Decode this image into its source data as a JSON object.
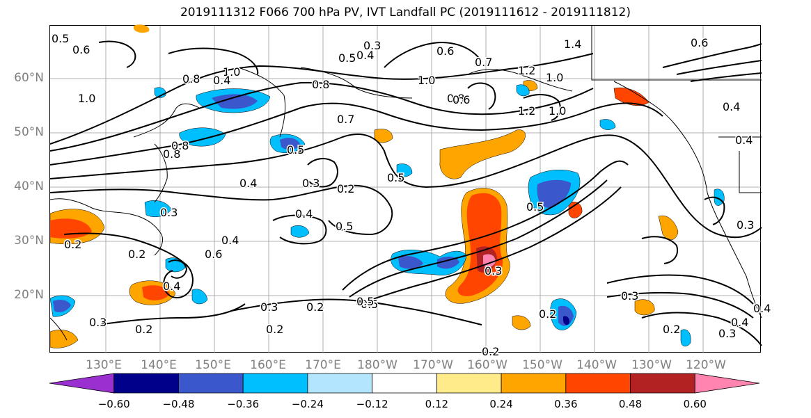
{
  "title": "2019111312 F066 700 hPa PV, IVT Landfall PC (2019111612 - 2019111812)",
  "lat_labels": [
    "60°N",
    "50°N",
    "40°N",
    "30°N",
    "20°N"
  ],
  "lon_labels": [
    "130°E",
    "140°E",
    "150°E",
    "160°E",
    "170°E",
    "180°W",
    "170°W",
    "160°W",
    "150°W",
    "140°W",
    "130°W",
    "120°W"
  ],
  "colorbar": {
    "colors": [
      "#9b30d0",
      "#00008b",
      "#3a57cc",
      "#00bfff",
      "#b3e5ff",
      "#ffffff",
      "#ffeb8a",
      "#ffa500",
      "#ff4500",
      "#b22222",
      "#ff85b0"
    ],
    "tick_labels": [
      "−0.60",
      "−0.48",
      "−0.36",
      "−0.24",
      "−0.12",
      "0.12",
      "0.24",
      "0.36",
      "0.48",
      "0.60"
    ]
  },
  "contour_labels": [
    "0.5",
    "0.6",
    "0.8",
    "1.0",
    "0.3",
    "0.5",
    "0.4",
    "0.6",
    "0.7",
    "1.0",
    "1.2",
    "1.4",
    "1.0",
    "1.2",
    "1.0",
    "0.8",
    "0.8",
    "0.4",
    "1.0",
    "0.8",
    "0.7",
    "0.8",
    "0.6",
    "0.5",
    "0.4",
    "0.3",
    "0.2",
    "0.5",
    "0.4",
    "0.6",
    "0.6",
    "0.4",
    "0.4",
    "0.2",
    "0.4",
    "0.5",
    "0.5",
    "0.3",
    "0.3",
    "0.2",
    "0.2",
    "0.4",
    "0.5",
    "0.2",
    "0.5",
    "0.3",
    "0.2",
    "0.2",
    "0.3",
    "0.2",
    "0.3",
    "0.4",
    "0.3",
    "0.2",
    "0.3",
    "0.4"
  ]
}
